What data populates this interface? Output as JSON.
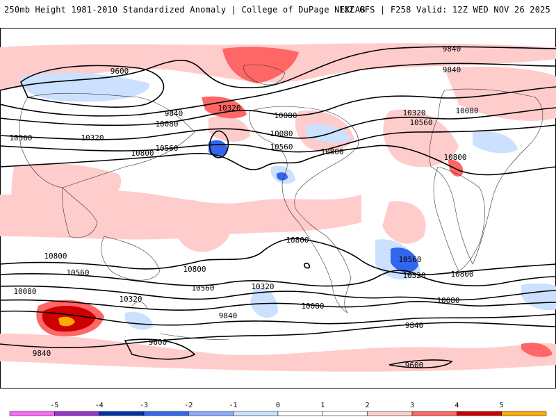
{
  "header": {
    "left": "250mb Height 1981-2010 Standardized Anomaly | College of DuPage NEXLAB",
    "right": "18Z GFS | F258 Valid: 12Z WED NOV 26 2025"
  },
  "map": {
    "contour_labels": [
      "9840",
      "9600",
      "9840",
      "10080",
      "10560",
      "10320",
      "10800",
      "10320",
      "10560",
      "10080",
      "9840",
      "10080",
      "10560",
      "10800",
      "10320",
      "10560",
      "10080",
      "10800",
      "10800",
      "10560",
      "10080",
      "10320",
      "9840",
      "9600",
      "9840",
      "10800",
      "10800",
      "10560",
      "10320",
      "10080",
      "10560",
      "10320",
      "10800",
      "10080",
      "9840",
      "9600"
    ],
    "colors": {
      "light_red": "#ffcccc",
      "mid_red": "#ff6666",
      "dark_red": "#cc0000",
      "light_blue": "#cce0ff",
      "mid_blue": "#3366ee",
      "orange": "#ffaa00"
    }
  },
  "colorbar": {
    "ticks": [
      "-5",
      "-4",
      "-3",
      "-2",
      "-1",
      "0",
      "1",
      "2",
      "3",
      "4",
      "5"
    ],
    "colors": [
      "#ff66ff",
      "#9933cc",
      "#0033aa",
      "#3366ee",
      "#88aaff",
      "#cce0ff",
      "#ffffff",
      "#ffffff",
      "#ffcccc",
      "#ff6666",
      "#cc0000",
      "#ffaa00"
    ]
  }
}
